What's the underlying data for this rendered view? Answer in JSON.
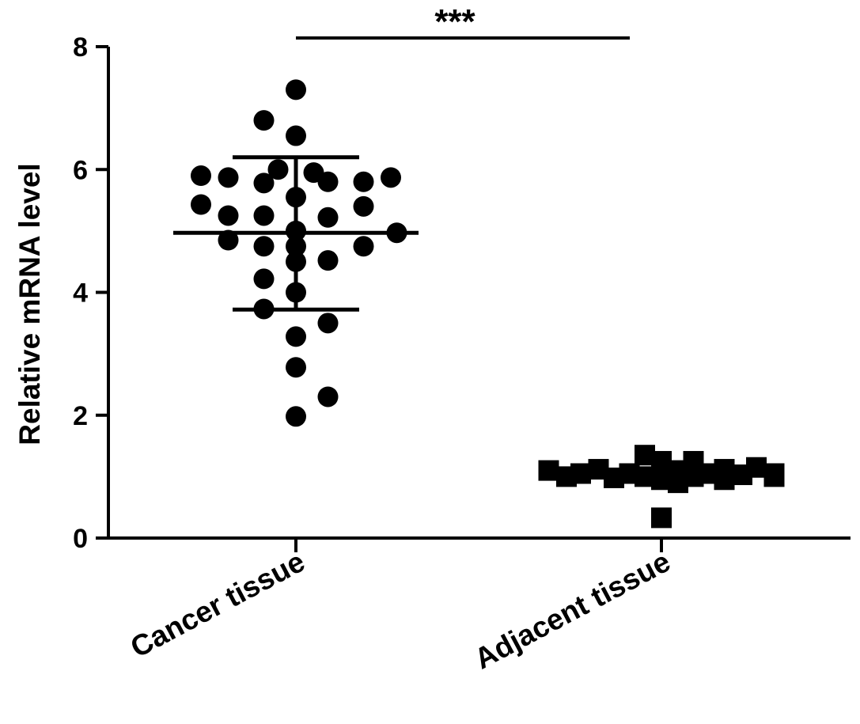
{
  "chart_data": {
    "type": "scatter",
    "ylabel": "Relative mRNA level",
    "ylim": [
      0,
      8
    ],
    "yticks": [
      0,
      2,
      4,
      6,
      8
    ],
    "categories": [
      "Cancer tissue",
      "Adjacent tissue"
    ],
    "series": [
      {
        "category": "Cancer tissue",
        "marker": "circle",
        "mean": 4.97,
        "sd_upper": 6.2,
        "sd_lower": 3.72,
        "points": [
          {
            "offset": 0.0,
            "y": 7.3
          },
          {
            "offset": -0.27,
            "y": 6.8
          },
          {
            "offset": 0.0,
            "y": 6.55
          },
          {
            "offset": -0.15,
            "y": 6.0
          },
          {
            "offset": 0.15,
            "y": 5.95
          },
          {
            "offset": -0.8,
            "y": 5.9
          },
          {
            "offset": -0.57,
            "y": 5.87
          },
          {
            "offset": 0.8,
            "y": 5.87
          },
          {
            "offset": -0.27,
            "y": 5.78
          },
          {
            "offset": 0.27,
            "y": 5.8
          },
          {
            "offset": 0.57,
            "y": 5.8
          },
          {
            "offset": 0.0,
            "y": 5.55
          },
          {
            "offset": -0.8,
            "y": 5.43
          },
          {
            "offset": 0.57,
            "y": 5.4
          },
          {
            "offset": -0.57,
            "y": 5.25
          },
          {
            "offset": -0.27,
            "y": 5.25
          },
          {
            "offset": 0.27,
            "y": 5.22
          },
          {
            "offset": 0.0,
            "y": 5.0
          },
          {
            "offset": 0.85,
            "y": 4.97
          },
          {
            "offset": -0.57,
            "y": 4.85
          },
          {
            "offset": -0.27,
            "y": 4.75
          },
          {
            "offset": 0.0,
            "y": 4.75
          },
          {
            "offset": 0.57,
            "y": 4.75
          },
          {
            "offset": 0.0,
            "y": 4.5
          },
          {
            "offset": 0.27,
            "y": 4.52
          },
          {
            "offset": -0.27,
            "y": 4.22
          },
          {
            "offset": 0.0,
            "y": 4.0
          },
          {
            "offset": -0.27,
            "y": 3.73
          },
          {
            "offset": 0.27,
            "y": 3.5
          },
          {
            "offset": 0.0,
            "y": 3.28
          },
          {
            "offset": 0.0,
            "y": 2.78
          },
          {
            "offset": 0.27,
            "y": 2.3
          },
          {
            "offset": 0.0,
            "y": 1.98
          }
        ]
      },
      {
        "category": "Adjacent tissue",
        "marker": "square",
        "mean": 1.03,
        "sd_upper": 1.1,
        "sd_lower": 0.96,
        "points": [
          {
            "offset": -0.95,
            "y": 1.1
          },
          {
            "offset": -0.8,
            "y": 1.0
          },
          {
            "offset": -0.68,
            "y": 1.05
          },
          {
            "offset": -0.53,
            "y": 1.12
          },
          {
            "offset": -0.4,
            "y": 0.98
          },
          {
            "offset": -0.27,
            "y": 1.05
          },
          {
            "offset": -0.14,
            "y": 1.35
          },
          {
            "offset": -0.14,
            "y": 1.0
          },
          {
            "offset": 0.0,
            "y": 1.25
          },
          {
            "offset": 0.0,
            "y": 0.95
          },
          {
            "offset": 0.0,
            "y": 0.33
          },
          {
            "offset": 0.14,
            "y": 1.1
          },
          {
            "offset": 0.14,
            "y": 0.9
          },
          {
            "offset": 0.27,
            "y": 1.25
          },
          {
            "offset": 0.27,
            "y": 1.0
          },
          {
            "offset": 0.4,
            "y": 1.05
          },
          {
            "offset": 0.53,
            "y": 1.12
          },
          {
            "offset": 0.53,
            "y": 0.95
          },
          {
            "offset": 0.68,
            "y": 1.03
          },
          {
            "offset": 0.8,
            "y": 1.15
          },
          {
            "offset": 0.95,
            "y": 1.0
          },
          {
            "offset": 0.95,
            "y": 1.05
          }
        ]
      }
    ],
    "annotation": {
      "text": "***",
      "from": "Cancer tissue",
      "to": "Adjacent tissue"
    },
    "marker_color": "#000000"
  }
}
